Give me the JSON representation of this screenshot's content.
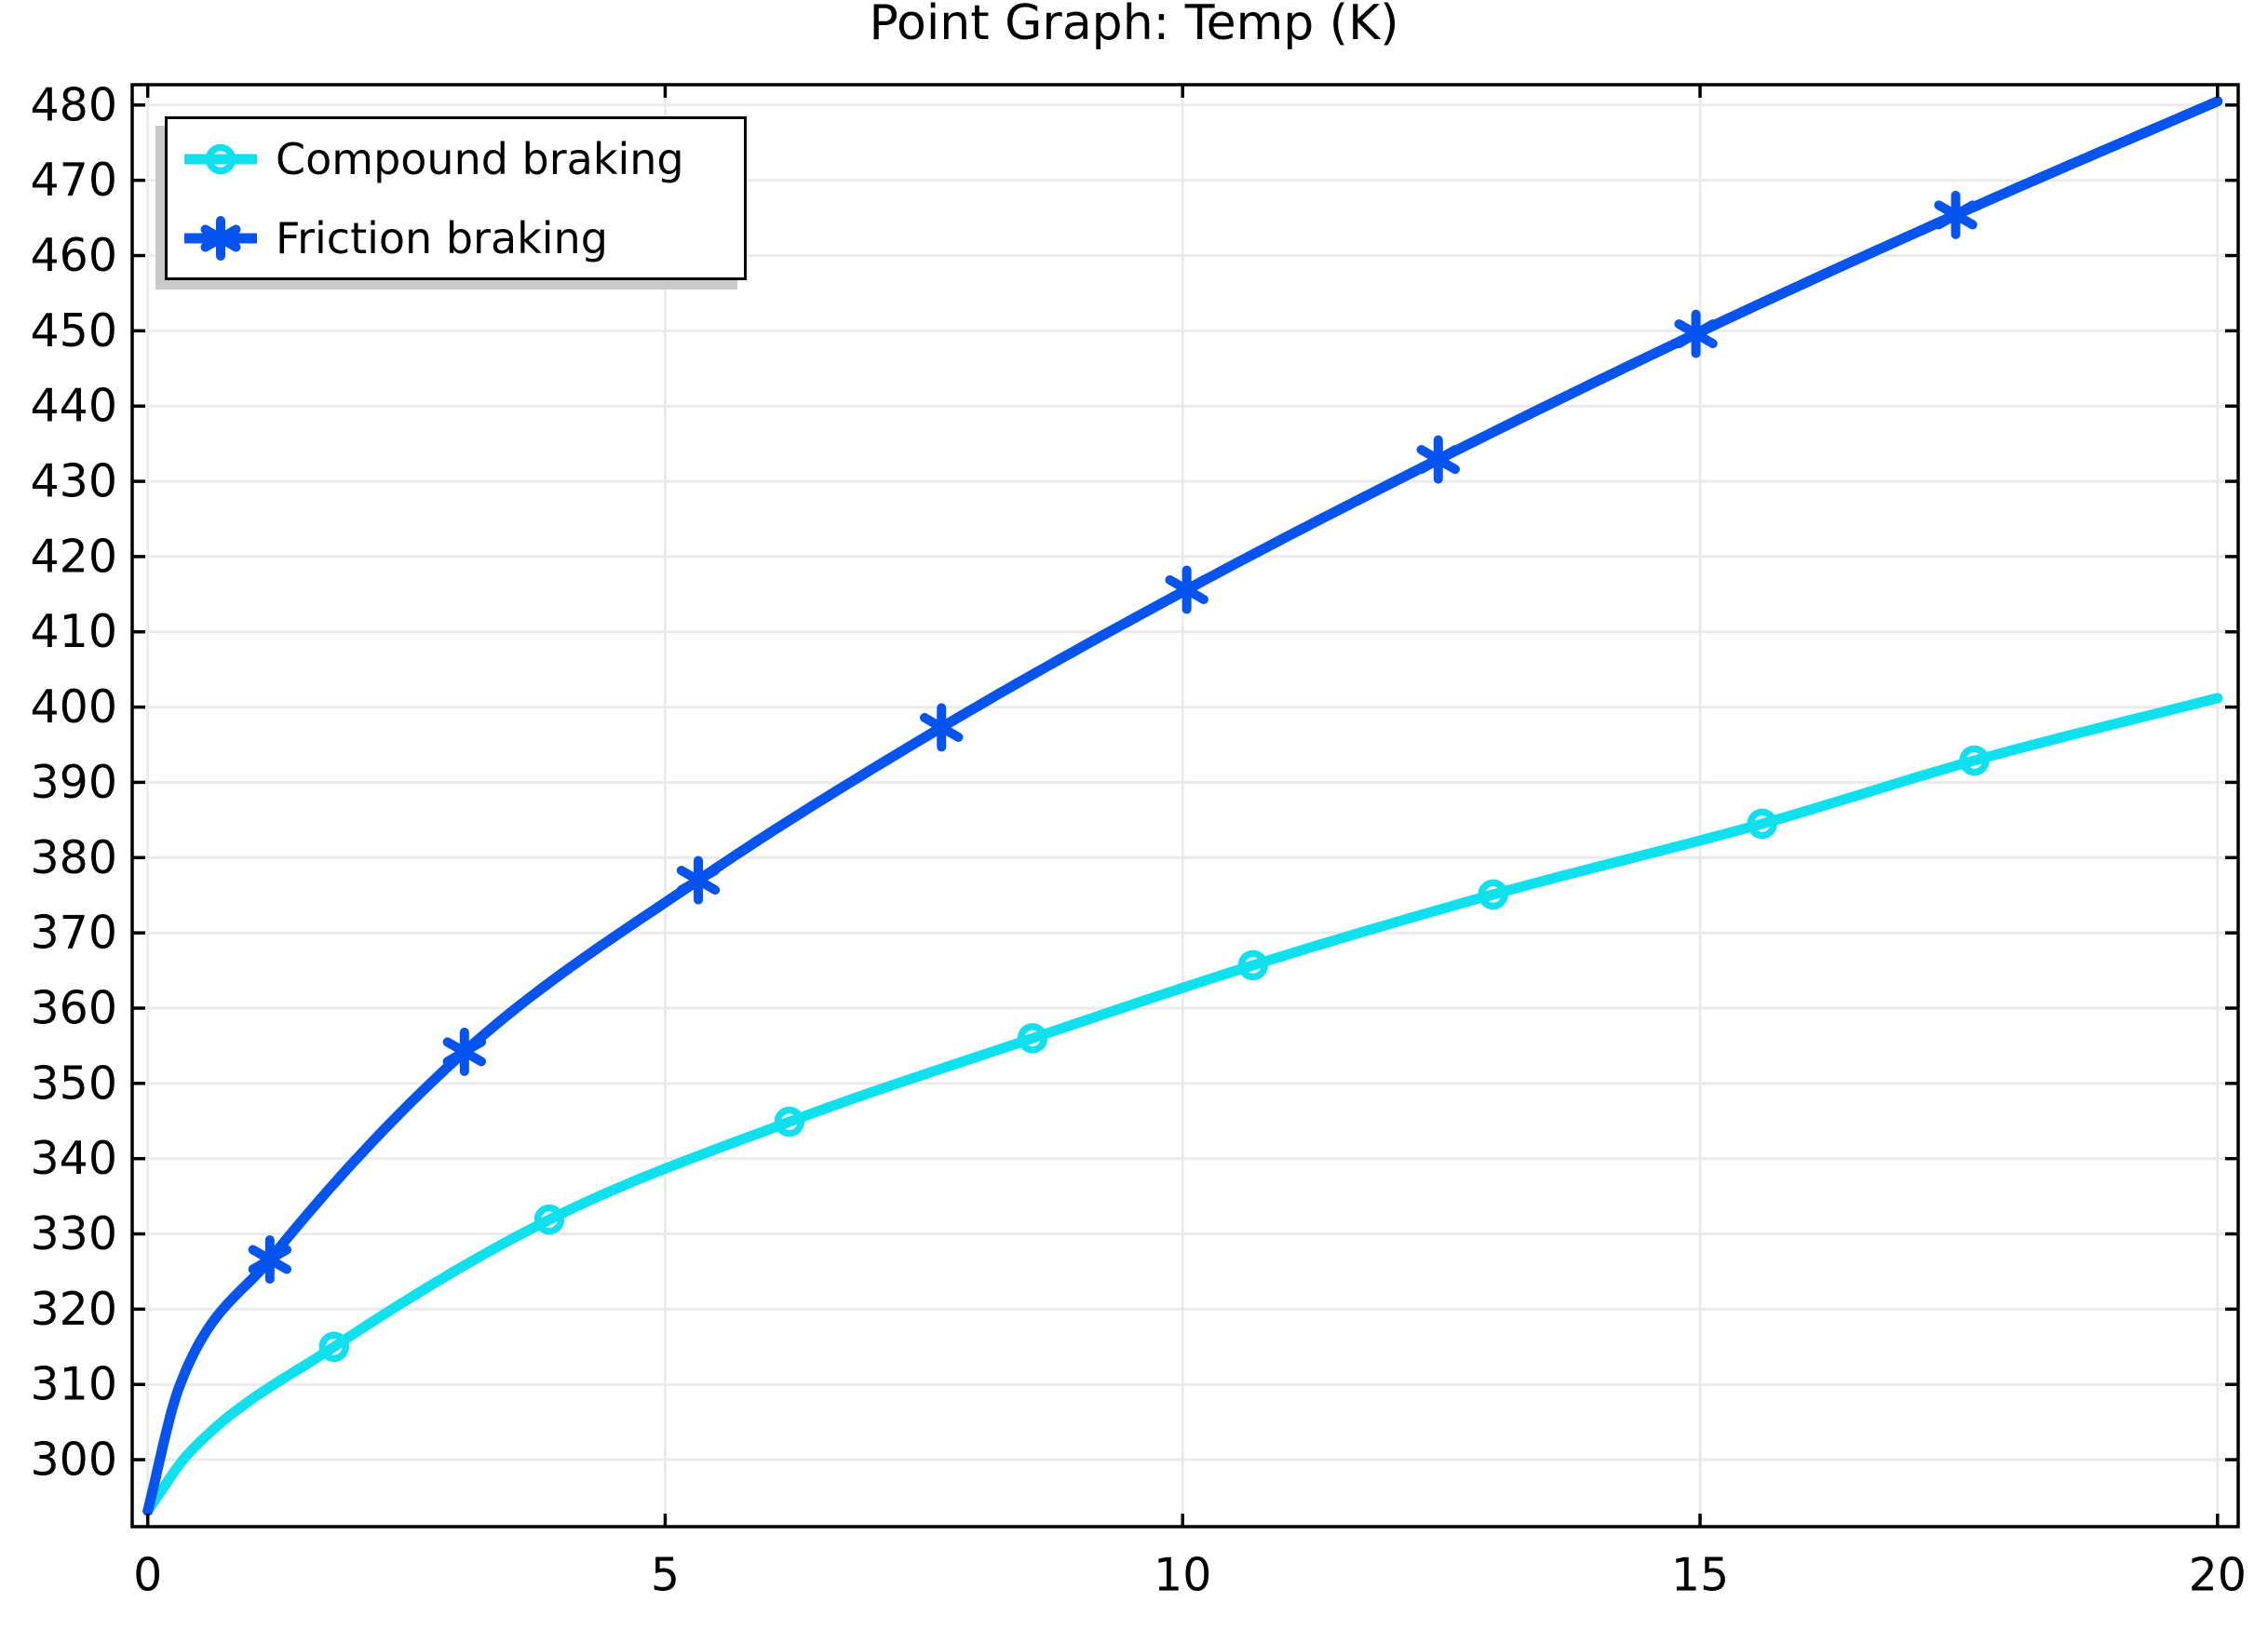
{
  "chart_data": {
    "type": "line",
    "title": "Point Graph: Temp (K)",
    "xlabel": "",
    "ylabel": "",
    "xlim": [
      -0.15,
      20.2
    ],
    "ylim": [
      291.1,
      482.7
    ],
    "x_ticks": [
      0,
      5,
      10,
      15,
      20
    ],
    "y_ticks": [
      300,
      310,
      320,
      330,
      340,
      350,
      360,
      370,
      380,
      390,
      400,
      410,
      420,
      430,
      440,
      450,
      460,
      470,
      480
    ],
    "grid": true,
    "legend_position": "top-left",
    "colors": {
      "grid": "#ebebeb",
      "axis": "#000000",
      "background": "#ffffff",
      "legend_shadow": "#c9c9c9"
    },
    "series": [
      {
        "name": "Compound braking",
        "color": "#0fe0ee",
        "marker": "circle",
        "curve_x": [
          0,
          0.4,
          1.8,
          3.88,
          6.2,
          8.55,
          10.68,
          13.0,
          15.6,
          17.65,
          20
        ],
        "curve_y": [
          293.2,
          300.9,
          315.0,
          331.9,
          344.9,
          356.0,
          365.7,
          375.1,
          384.5,
          392.9,
          401.2
        ],
        "marker_x": [
          1.8,
          3.88,
          6.2,
          8.55,
          10.68,
          13.0,
          15.6,
          17.65
        ],
        "marker_y": [
          315.0,
          331.9,
          344.9,
          356.0,
          365.7,
          375.1,
          384.5,
          392.9
        ]
      },
      {
        "name": "Friction braking",
        "color": "#0554f0",
        "marker": "asterisk",
        "curve_x": [
          0,
          0.3,
          1.18,
          3.06,
          5.32,
          7.67,
          10.04,
          12.47,
          14.96,
          17.47,
          20
        ],
        "curve_y": [
          293.2,
          309.5,
          326.6,
          354.2,
          377.0,
          397.3,
          415.6,
          432.9,
          449.6,
          465.4,
          480.5
        ],
        "marker_x": [
          1.18,
          3.06,
          5.32,
          7.67,
          10.04,
          12.47,
          14.96,
          17.47
        ],
        "marker_y": [
          326.6,
          354.2,
          377.0,
          397.3,
          415.6,
          432.9,
          449.6,
          465.4
        ]
      }
    ]
  }
}
